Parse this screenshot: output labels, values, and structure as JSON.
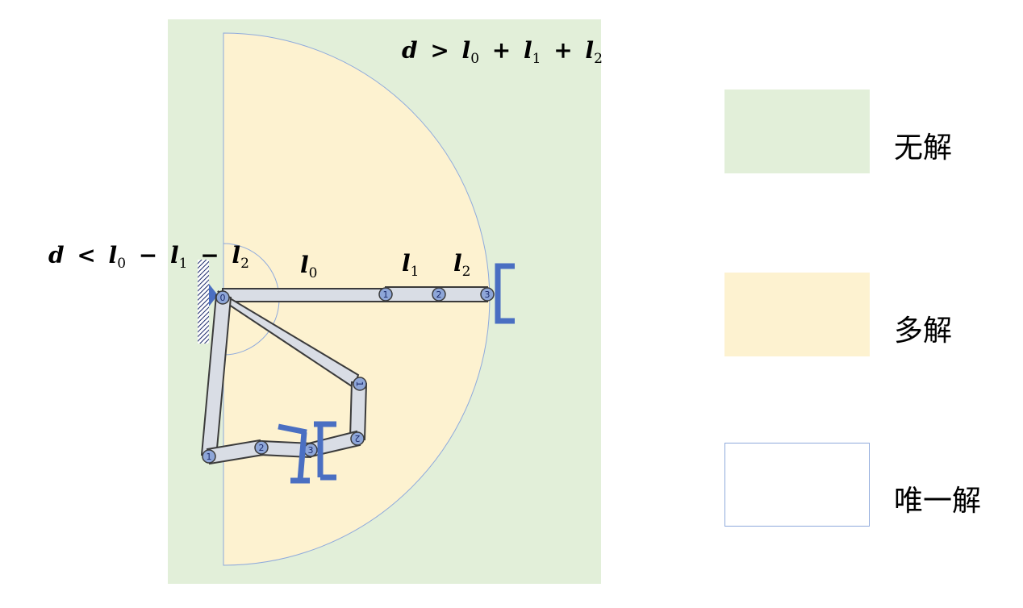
{
  "colors": {
    "no_solution": "#e2efd9",
    "multiple_solutions": "#fdf2d0",
    "unique_solution_border": "#8faadc",
    "link_fill": "#d9dde5",
    "link_stroke": "#3b3b3b",
    "joint_fill": "#8ea6d8",
    "gripper": "#4a6fc2"
  },
  "annotations": {
    "outer": {
      "d": "d",
      "op": ">",
      "l0": "l",
      "s0": "0",
      "plus1": "+",
      "l1": "l",
      "s1": "1",
      "plus2": "+",
      "l2": "l",
      "s2": "2"
    },
    "inner": {
      "d": "d",
      "op": "<",
      "l0": "l",
      "s0": "0",
      "minus1": "−",
      "l1": "l",
      "s1": "1",
      "minus2": "−",
      "l2": "l",
      "s2": "2"
    },
    "link_l0": {
      "l": "l",
      "s": "0"
    },
    "link_l1": {
      "l": "l",
      "s": "1"
    },
    "link_l2": {
      "l": "l",
      "s": "2"
    }
  },
  "joints": {
    "base": "0",
    "arm_a": [
      "1",
      "2",
      "3"
    ],
    "arm_b": [
      "1",
      "2",
      "3"
    ],
    "arm_c": [
      "1",
      "2"
    ]
  },
  "legend": [
    {
      "label": "无解"
    },
    {
      "label": "多解"
    },
    {
      "label": "唯一解"
    }
  ]
}
